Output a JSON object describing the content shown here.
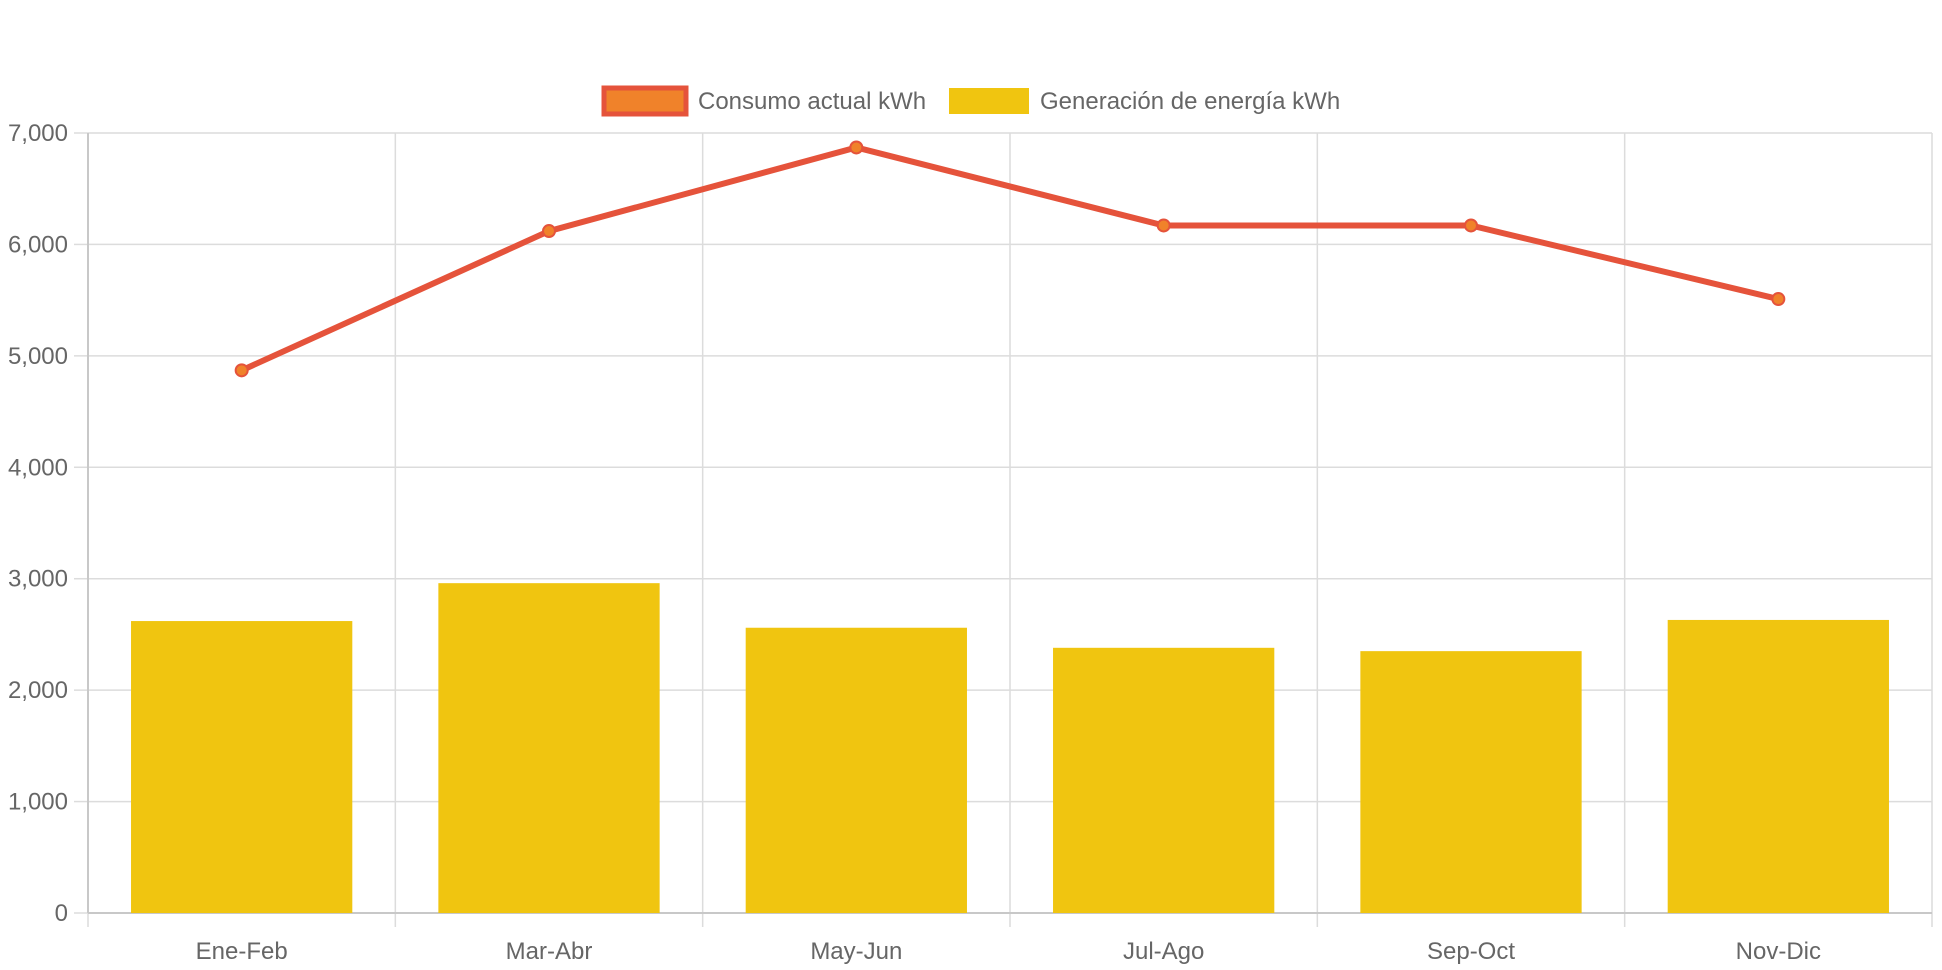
{
  "chart_data": {
    "type": "bar",
    "categories": [
      "Ene-Feb",
      "Mar-Abr",
      "May-Jun",
      "Jul-Ago",
      "Sep-Oct",
      "Nov-Dic"
    ],
    "series": [
      {
        "name": "Consumo actual kWh",
        "type": "line",
        "values": [
          4870,
          6120,
          6870,
          6170,
          6170,
          5510
        ],
        "color": "#e5533b",
        "point_color": "#f0822a"
      },
      {
        "name": "Generación de energía kWh",
        "type": "bar",
        "values": [
          2620,
          2960,
          2560,
          2380,
          2350,
          2630
        ],
        "color": "#f0c510"
      }
    ],
    "ylim": [
      0,
      7000
    ],
    "yticks": [
      0,
      1000,
      2000,
      3000,
      4000,
      5000,
      6000,
      7000
    ],
    "ytick_labels": [
      "0",
      "1,000",
      "2,000",
      "3,000",
      "4,000",
      "5,000",
      "6,000",
      "7,000"
    ],
    "grid": true,
    "legend_position": "top-center",
    "title": "",
    "xlabel": "",
    "ylabel": ""
  }
}
